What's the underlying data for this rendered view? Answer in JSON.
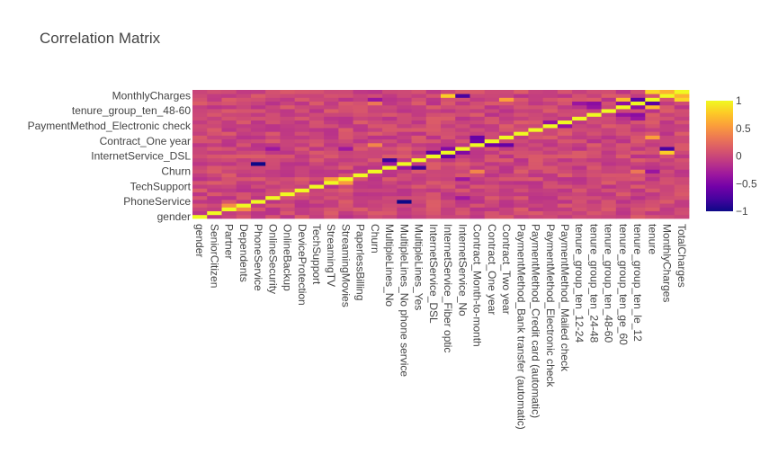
{
  "chart_data": {
    "type": "heatmap",
    "title": "Correlation Matrix",
    "variables": [
      "gender",
      "SeniorCitizen",
      "Partner",
      "Dependents",
      "PhoneService",
      "OnlineSecurity",
      "OnlineBackup",
      "DeviceProtection",
      "TechSupport",
      "StreamingTV",
      "StreamingMovies",
      "PaperlessBilling",
      "Churn",
      "MultipleLines_No",
      "MultipleLines_No phone service",
      "MultipleLines_Yes",
      "InternetService_DSL",
      "InternetService_Fiber optic",
      "InternetService_No",
      "Contract_Month-to-month",
      "Contract_One year",
      "Contract_Two year",
      "PaymentMethod_Bank transfer (automatic)",
      "PaymentMethod_Credit card (automatic)",
      "PaymentMethod_Electronic check",
      "PaymentMethod_Mailed check",
      "tenure_group_ten_12-24",
      "tenure_group_ten_24-48",
      "tenure_group_ten_48-60",
      "tenure_group_ten_ge_60",
      "tenure_group_ten_le_12",
      "tenure",
      "MonthlyCharges",
      "TotalCharges"
    ],
    "x_tick_labels": [
      "gender",
      "SeniorCitizen",
      "Partner",
      "Dependents",
      "PhoneService",
      "OnlineSecurity",
      "OnlineBackup",
      "DeviceProtection",
      "TechSupport",
      "StreamingTV",
      "StreamingMovies",
      "PaperlessBilling",
      "Churn",
      "MultipleLines_No",
      "MultipleLines_No phone service",
      "MultipleLines_Yes",
      "InternetService_DSL",
      "InternetService_Fiber optic",
      "InternetService_No",
      "Contract_Month-to-month",
      "Contract_One year",
      "Contract_Two year",
      "PaymentMethod_Bank transfer (automatic)",
      "PaymentMethod_Credit card (automatic)",
      "PaymentMethod_Electronic check",
      "PaymentMethod_Mailed check",
      "tenure_group_ten_12-24",
      "tenure_group_ten_24-48",
      "tenure_group_ten_48-60",
      "tenure_group_ten_ge_60",
      "tenure_group_ten_le_12",
      "tenure",
      "MonthlyCharges",
      "TotalCharges"
    ],
    "y_tick_labels": [
      "gender",
      "PhoneService",
      "TechSupport",
      "Churn",
      "InternetService_DSL",
      "Contract_One year",
      "PaymentMethod_Electronic check",
      "tenure_group_ten_48-60",
      "MonthlyCharges"
    ],
    "colorscale": "plasma",
    "zmin": -1,
    "zmax": 1,
    "colorbar_ticks": [
      "1",
      "0.5",
      "0",
      "−0.5",
      "−1"
    ],
    "colorbar_tick_values": [
      1,
      0.5,
      0,
      -0.5,
      -1
    ],
    "strong_correlations": [
      {
        "a": "PhoneService",
        "b": "MultipleLines_No phone service",
        "value": -1
      },
      {
        "a": "InternetService_No",
        "b": "OnlineSecurity",
        "value": -0.33
      },
      {
        "a": "Contract_Month-to-month",
        "b": "Contract_Two year",
        "value": -0.62
      },
      {
        "a": "Contract_Month-to-month",
        "b": "Contract_One year",
        "value": -0.57
      },
      {
        "a": "InternetService_DSL",
        "b": "InternetService_Fiber optic",
        "value": -0.64
      },
      {
        "a": "InternetService_Fiber optic",
        "b": "InternetService_No",
        "value": -0.47
      },
      {
        "a": "MultipleLines_No",
        "b": "MultipleLines_Yes",
        "value": -0.82
      },
      {
        "a": "MultipleLines_No",
        "b": "MultipleLines_No phone service",
        "value": -0.32
      },
      {
        "a": "tenure",
        "b": "TotalCharges",
        "value": 0.83
      },
      {
        "a": "MonthlyCharges",
        "b": "TotalCharges",
        "value": 0.65
      },
      {
        "a": "tenure",
        "b": "tenure_group_ten_le_12",
        "value": -0.68
      },
      {
        "a": "tenure",
        "b": "tenure_group_ten_ge_60",
        "value": 0.7
      },
      {
        "a": "tenure_group_ten_le_12",
        "b": "tenure_group_ten_12-24",
        "value": -0.35
      },
      {
        "a": "tenure_group_ten_le_12",
        "b": "tenure_group_ten_24-48",
        "value": -0.43
      },
      {
        "a": "tenure_group_ten_le_12",
        "b": "tenure_group_ten_ge_60",
        "value": -0.42
      },
      {
        "a": "tenure_group_ten_24-48",
        "b": "tenure_group_ten_ge_60",
        "value": -0.37
      },
      {
        "a": "Churn",
        "b": "Contract_Month-to-month",
        "value": 0.41
      },
      {
        "a": "Churn",
        "b": "tenure",
        "value": -0.35
      },
      {
        "a": "Churn",
        "b": "tenure_group_ten_le_12",
        "value": 0.32
      },
      {
        "a": "InternetService_Fiber optic",
        "b": "MonthlyCharges",
        "value": 0.79
      },
      {
        "a": "InternetService_No",
        "b": "MonthlyCharges",
        "value": -0.76
      },
      {
        "a": "StreamingTV",
        "b": "StreamingMovies",
        "value": 0.53
      },
      {
        "a": "Partner",
        "b": "Dependents",
        "value": 0.45
      },
      {
        "a": "PaymentMethod_Electronic check",
        "b": "PaymentMethod_Mailed check",
        "value": -0.39
      },
      {
        "a": "Contract_Two year",
        "b": "tenure",
        "value": 0.56
      },
      {
        "a": "InternetService_No",
        "b": "StreamingMovies",
        "value": -0.33
      }
    ]
  }
}
